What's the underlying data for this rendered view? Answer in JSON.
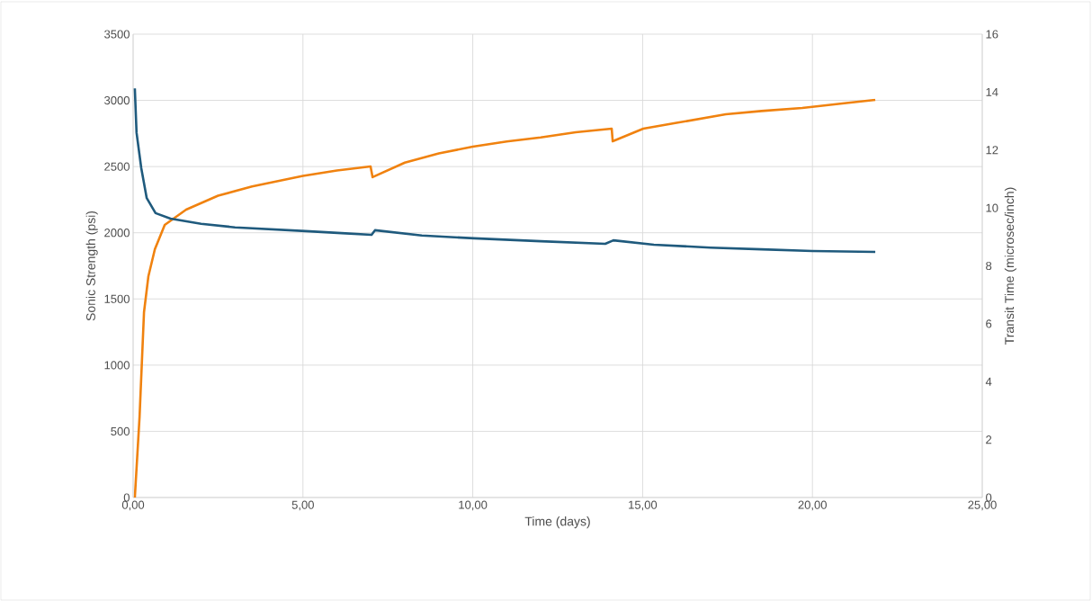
{
  "chart_data": {
    "type": "line",
    "xlabel": "Time (days)",
    "ylabel": "Sonic Strength (psi)",
    "y2label": "Transit Time (microsec/inch)",
    "xlim": [
      0,
      25
    ],
    "xticks": [
      {
        "value": 0,
        "label": "0,00"
      },
      {
        "value": 5,
        "label": "5,00"
      },
      {
        "value": 10,
        "label": "10,00"
      },
      {
        "value": 15,
        "label": "15,00"
      },
      {
        "value": 20,
        "label": "20,00"
      },
      {
        "value": 25,
        "label": "25,00"
      }
    ],
    "ylim": [
      0,
      3500
    ],
    "yticks": [
      0,
      500,
      1000,
      1500,
      2000,
      2500,
      3000,
      3500
    ],
    "y2lim": [
      0,
      16
    ],
    "y2ticks": [
      0,
      2,
      4,
      6,
      8,
      10,
      12,
      14,
      16
    ],
    "grid": true,
    "marker": "none",
    "line_style": "solid",
    "series": [
      {
        "color": "#f0820f",
        "x": [
          0.05,
          0.19,
          0.32,
          0.45,
          0.64,
          0.93,
          1.56,
          2.5,
          3.5,
          5.0,
          6.0,
          6.99,
          7.05,
          8.0,
          9.0,
          10.0,
          11.0,
          12.0,
          13.03,
          14.09,
          14.12,
          15.02,
          16.0,
          17.45,
          18.5,
          19.7,
          21.0,
          21.85
        ],
        "values": [
          0,
          612,
          1400,
          1672,
          1876,
          2059,
          2175,
          2280,
          2350,
          2430,
          2470,
          2501,
          2420,
          2530,
          2600,
          2650,
          2690,
          2720,
          2759,
          2786,
          2691,
          2786,
          2830,
          2895,
          2920,
          2943,
          2980,
          3004
        ]
      },
      {
        "color": "#1f5a7d",
        "axis": "y2",
        "x": [
          0.05,
          0.1,
          0.24,
          0.4,
          0.66,
          1.1,
          2.0,
          3.0,
          5.08,
          6.14,
          7.02,
          7.12,
          8.5,
          10.04,
          12.0,
          13.9,
          14.14,
          15.33,
          17.0,
          18.5,
          20.0,
          21.85
        ],
        "values": [
          14.13,
          12.6,
          11.37,
          10.34,
          9.82,
          9.63,
          9.45,
          9.33,
          9.2,
          9.13,
          9.07,
          9.23,
          9.05,
          8.95,
          8.85,
          8.76,
          8.88,
          8.73,
          8.63,
          8.57,
          8.51,
          8.48
        ]
      }
    ]
  }
}
